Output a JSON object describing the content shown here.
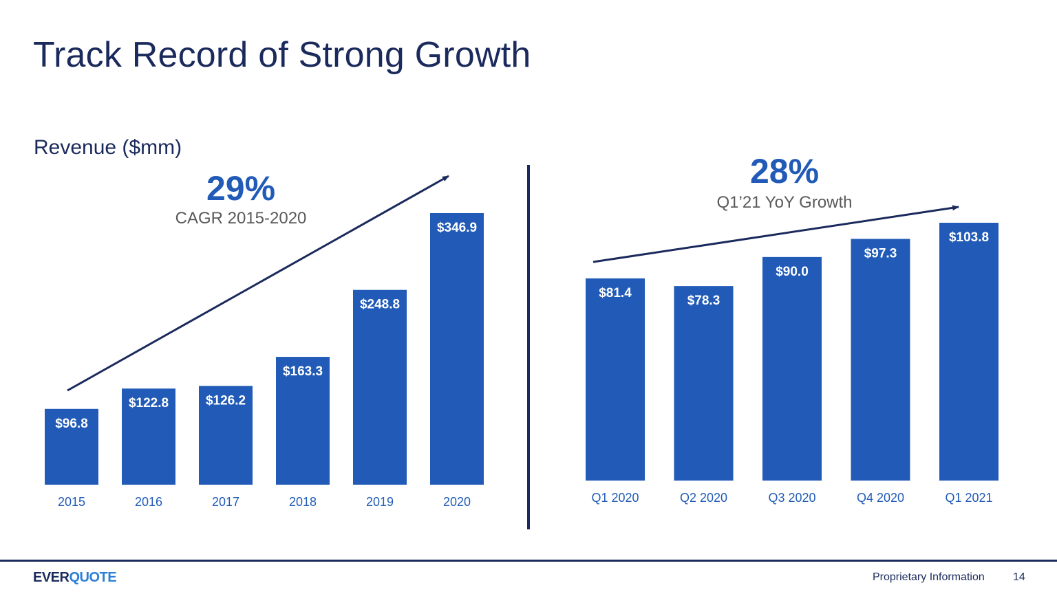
{
  "slide": {
    "title": "Track Record of Strong Growth",
    "subtitle": "Revenue ($mm)",
    "page_number": "14",
    "footer_label": "Proprietary Information",
    "logo": {
      "part1": "EVER",
      "part2": "QUOTE"
    }
  },
  "annual_stat": {
    "value": "29%",
    "label": "CAGR 2015-2020"
  },
  "quarterly_stat": {
    "value": "28%",
    "label": "Q1’21 YoY Growth"
  },
  "colors": {
    "bar": "#215bb7",
    "navy": "#1b2a5c",
    "accent": "#215bb7",
    "axis_text": "#215bb7"
  },
  "chart_data": [
    {
      "type": "bar",
      "categories": [
        "2015",
        "2016",
        "2017",
        "2018",
        "2019",
        "2020"
      ],
      "values": [
        96.8,
        122.8,
        126.2,
        163.3,
        248.8,
        346.9
      ],
      "labels": [
        "$96.8",
        "$122.8",
        "$126.2",
        "$163.3",
        "$248.8",
        "$346.9"
      ],
      "ylabel": "",
      "ylim": [
        0,
        346.9
      ],
      "trend_arrow": true,
      "grid": false
    },
    {
      "type": "bar",
      "categories": [
        "Q1 2020",
        "Q2 2020",
        "Q3 2020",
        "Q4 2020",
        "Q1 2021"
      ],
      "values": [
        81.4,
        78.3,
        90.0,
        97.3,
        103.8
      ],
      "labels": [
        "$81.4",
        "$78.3",
        "$90.0",
        "$97.3",
        "$103.8"
      ],
      "ylabel": "",
      "ylim": [
        0,
        103.8
      ],
      "trend_arrow": true,
      "grid": false
    }
  ]
}
